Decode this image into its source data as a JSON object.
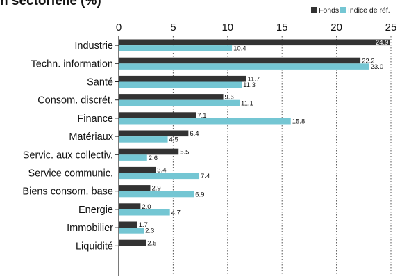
{
  "title": "n sectorielle (%)",
  "colors": {
    "fonds": "#333333",
    "indice": "#74c6d3",
    "grid": "#555555"
  },
  "chart_data": {
    "type": "bar",
    "orientation": "horizontal",
    "title": "n sectorielle (%)",
    "xlim": [
      0,
      25
    ],
    "xticks": [
      0,
      5,
      10,
      15,
      20,
      25
    ],
    "grid": "vertical dotted",
    "legend_position": "top-right",
    "categories": [
      "Industrie",
      "Techn. information",
      "Santé",
      "Consom. discrét.",
      "Finance",
      "Matériaux",
      "Servic. aux collectiv.",
      "Service communic.",
      "Biens consom. base",
      "Energie",
      "Immobilier",
      "Liquidité"
    ],
    "series": [
      {
        "name": "Fonds",
        "color": "#333333",
        "values": [
          24.9,
          22.2,
          11.7,
          9.6,
          7.1,
          6.4,
          5.5,
          3.4,
          2.9,
          2.0,
          1.7,
          2.5
        ],
        "labels": [
          "24.9",
          "22.2",
          "11.7",
          "9.6",
          "7.1",
          "6.4",
          "5.5",
          "3.4",
          "2.9",
          "2.0",
          "1.7",
          "2.5"
        ]
      },
      {
        "name": "Indice de réf.",
        "color": "#74c6d3",
        "values": [
          10.4,
          23.0,
          11.3,
          11.1,
          15.8,
          4.5,
          2.6,
          7.4,
          6.9,
          4.7,
          2.3,
          null
        ],
        "labels": [
          "10.4",
          "23.0",
          "11.3",
          "11.1",
          "15.8",
          "4.5",
          "2.6",
          "7.4",
          "6.9",
          "4.7",
          "2.3",
          null
        ]
      }
    ]
  }
}
